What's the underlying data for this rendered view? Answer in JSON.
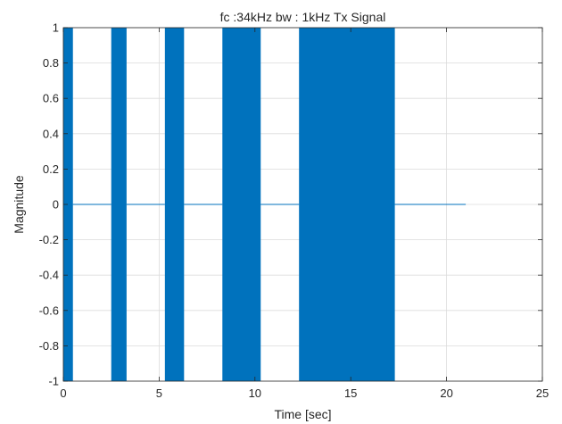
{
  "chart_data": {
    "type": "area",
    "title": "fc :34kHz bw : 1kHz Tx Signal",
    "xlabel": "Time [sec]",
    "ylabel": "Magnitude",
    "xlim": [
      0,
      25
    ],
    "ylim": [
      -1,
      1
    ],
    "xticks": [
      0,
      5,
      10,
      15,
      20,
      25
    ],
    "xtick_labels": [
      "0",
      "5",
      "10",
      "15",
      "20",
      "25"
    ],
    "yticks": [
      -1,
      -0.8,
      -0.6,
      -0.4,
      -0.2,
      0,
      0.2,
      0.4,
      0.6,
      0.8,
      1
    ],
    "ytick_labels": [
      "-1",
      "-0.8",
      "-0.6",
      "-0.4",
      "-0.2",
      "0",
      "0.2",
      "0.4",
      "0.6",
      "0.8",
      "1"
    ],
    "grid": true,
    "series": [
      {
        "color": "#0072BD",
        "bursts": [
          {
            "start": 0.0,
            "end": 0.5,
            "amplitude": 1
          },
          {
            "start": 2.5,
            "end": 3.3,
            "amplitude": 1
          },
          {
            "start": 5.3,
            "end": 6.3,
            "amplitude": 1
          },
          {
            "start": 8.3,
            "end": 10.3,
            "amplitude": 1
          },
          {
            "start": 12.3,
            "end": 17.3,
            "amplitude": 1
          }
        ],
        "baseline_segments": [
          {
            "start": 0.5,
            "end": 2.5,
            "value": 0
          },
          {
            "start": 3.3,
            "end": 5.3,
            "value": 0
          },
          {
            "start": 6.3,
            "end": 8.3,
            "value": 0
          },
          {
            "start": 10.3,
            "end": 12.3,
            "value": 0
          },
          {
            "start": 17.3,
            "end": 21.0,
            "value": 0
          }
        ]
      }
    ]
  }
}
